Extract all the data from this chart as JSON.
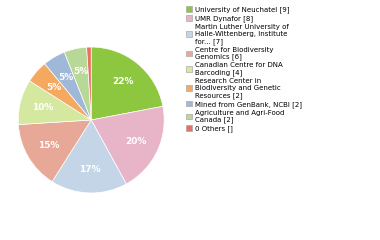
{
  "labels": [
    "University of Neuchatel [9]",
    "UMR Dynafor [8]",
    "Martin Luther University of\nHalle-Wittenberg, Institute\nfor... [7]",
    "Centre for Biodiversity\nGenomics [6]",
    "Canadian Centre for DNA\nBarcoding [4]",
    "Research Center in\nBiodiversity and Genetic\nResources [2]",
    "Mined from GenBank, NCBI [2]",
    "Agriculture and Agri-Food\nCanada [2]",
    "0 Others []"
  ],
  "values": [
    22,
    20,
    17,
    15,
    10,
    5,
    5,
    5,
    1
  ],
  "colors": [
    "#8dc63f",
    "#e8b4c8",
    "#c5d5e8",
    "#e8a898",
    "#d4e8a0",
    "#f4a860",
    "#a0b8d8",
    "#b8d898",
    "#e87060"
  ],
  "pct_labels": [
    "22%",
    "20%",
    "17%",
    "15%",
    "10%",
    "5%",
    "5%",
    "5%",
    ""
  ],
  "legend_labels": [
    "University of Neuchatel [9]",
    "UMR Dynafor [8]",
    "Martin Luther University of\nHalle-Wittenberg, Institute\nfor... [7]",
    "Centre for Biodiversity\nGenomics [6]",
    "Canadian Centre for DNA\nBarcoding [4]",
    "Research Center in\nBiodiversity and Genetic\nResources [2]",
    "Mined from GenBank, NCBI [2]",
    "Agriculture and Agri-Food\nCanada [2]",
    "0 Others []"
  ],
  "startangle": 90,
  "figsize": [
    3.8,
    2.4
  ],
  "dpi": 100
}
